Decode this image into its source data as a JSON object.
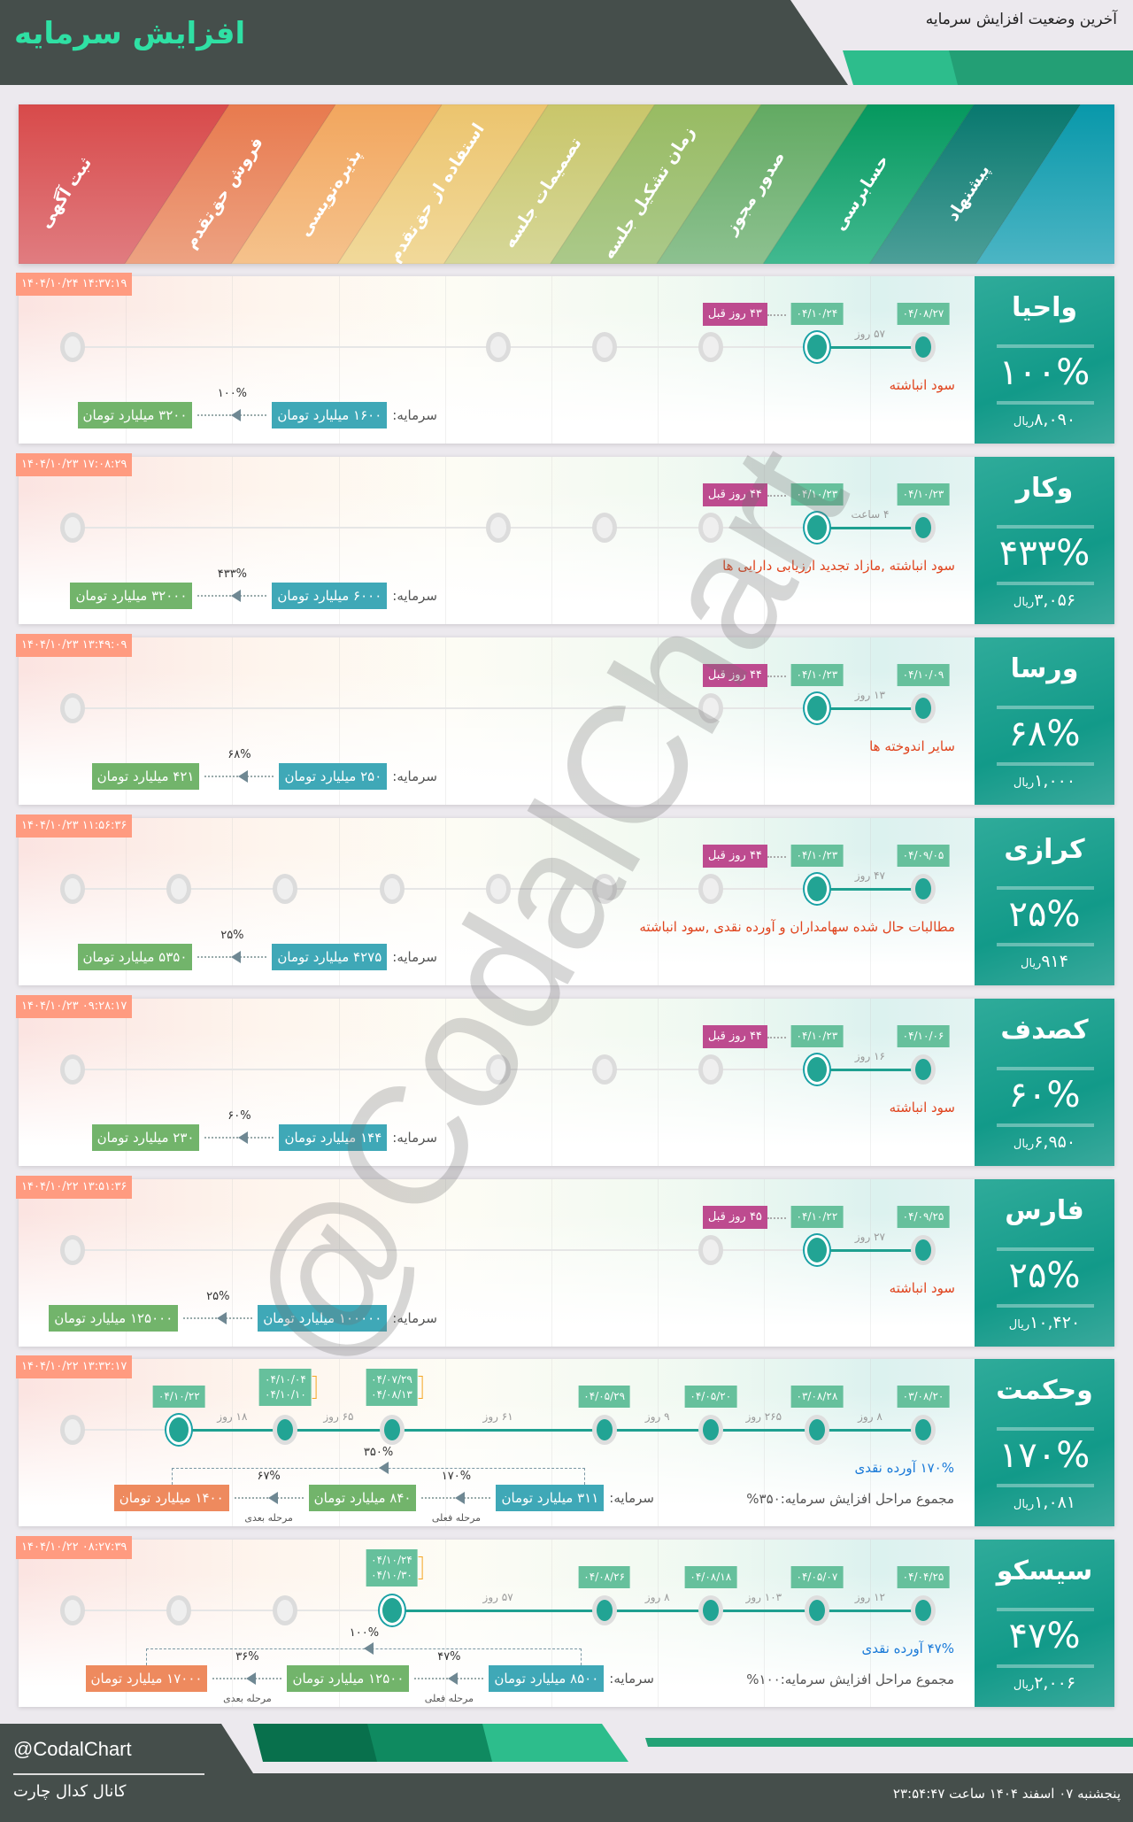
{
  "header": {
    "title": "افزایش سرمایه",
    "subtitle": "آخرین وضعیت افزایش سرمایه"
  },
  "stages": [
    "ثبت آگهی",
    "فروش حق‌تقدم",
    "پذیره‌نویسی",
    "استفاده از حق‌تقدم",
    "تصمیمات جلسه",
    "زمان تشکیل جلسه",
    "صدور مجوز",
    "حسابرسی",
    "پیشنهاد"
  ],
  "stage_colors": [
    "#d84a4a",
    "#e87a4e",
    "#f2a65e",
    "#ecc46e",
    "#c9c66a",
    "#98bb62",
    "#62aa62",
    "#05985e",
    "#08786e",
    "#0898aa"
  ],
  "labels": {
    "capital": "سرمایه:",
    "rial": "ریال",
    "current_step": "مرحله فعلی",
    "next_step": "مرحله بعدی"
  },
  "cards": [
    {
      "name": "واحیا",
      "percent": "۱۰۰%",
      "price": "۸,۰۹۰",
      "timestamp": "۱۴۰۴/۱۰/۲۴ ۱۴:۳۷:۱۹",
      "stages": [
        {
          "stage": 0,
          "state": "done",
          "dates": [
            "۰۴/۰۸/۲۷"
          ]
        },
        {
          "stage": 1,
          "state": "current",
          "dates": [
            "۰۴/۱۰/۲۴"
          ]
        },
        {
          "stage": 2,
          "state": "empty"
        },
        {
          "stage": 3,
          "state": "empty"
        },
        {
          "stage": 4,
          "state": "empty"
        },
        {
          "stage": 8,
          "state": "empty"
        }
      ],
      "gaps": [
        {
          "from": 0,
          "to": 1,
          "label": "۵۷ روز"
        }
      ],
      "ago": "۴۳ روز قبل",
      "reason": "سود انباشته",
      "capital": {
        "boxes": [
          "۱۶۰۰ میلیارد تومان",
          "۳۲۰۰ میلیارد تومان"
        ],
        "steps": [
          {
            "percent": "۱۰۰%"
          }
        ]
      }
    },
    {
      "name": "وکار",
      "percent": "۴۳۳%",
      "price": "۳,۰۵۶",
      "timestamp": "۱۴۰۴/۱۰/۲۳ ۱۷:۰۸:۲۹",
      "stages": [
        {
          "stage": 0,
          "state": "done",
          "dates": [
            "۰۴/۱۰/۲۳"
          ]
        },
        {
          "stage": 1,
          "state": "current",
          "dates": [
            "۰۴/۱۰/۲۳"
          ]
        },
        {
          "stage": 2,
          "state": "empty"
        },
        {
          "stage": 3,
          "state": "empty"
        },
        {
          "stage": 4,
          "state": "empty"
        },
        {
          "stage": 8,
          "state": "empty"
        }
      ],
      "gaps": [
        {
          "from": 0,
          "to": 1,
          "label": "۴ ساعت"
        }
      ],
      "ago": "۴۴ روز قبل",
      "reason": "سود انباشته ,مازاد تجدید ارزیابی دارایی ها",
      "capital": {
        "boxes": [
          "۶۰۰۰ میلیارد تومان",
          "۳۲۰۰۰ میلیارد تومان"
        ],
        "steps": [
          {
            "percent": "۴۳۳%"
          }
        ]
      }
    },
    {
      "name": "ورسا",
      "percent": "۶۸%",
      "price": "۱,۰۰۰",
      "timestamp": "۱۴۰۴/۱۰/۲۳ ۱۳:۴۹:۰۹",
      "stages": [
        {
          "stage": 0,
          "state": "done",
          "dates": [
            "۰۴/۱۰/۰۹"
          ]
        },
        {
          "stage": 1,
          "state": "current",
          "dates": [
            "۰۴/۱۰/۲۳"
          ]
        },
        {
          "stage": 2,
          "state": "empty"
        },
        {
          "stage": 8,
          "state": "empty"
        }
      ],
      "gaps": [
        {
          "from": 0,
          "to": 1,
          "label": "۱۳ روز"
        }
      ],
      "ago": "۴۴ روز قبل",
      "reason": "سایر اندوخته ها",
      "capital": {
        "boxes": [
          "۲۵۰ میلیارد تومان",
          "۴۲۱ میلیارد تومان"
        ],
        "steps": [
          {
            "percent": "۶۸%"
          }
        ]
      }
    },
    {
      "name": "کرازی",
      "percent": "۲۵%",
      "price": "۹۱۴",
      "timestamp": "۱۴۰۴/۱۰/۲۳ ۱۱:۵۶:۳۶",
      "stages": [
        {
          "stage": 0,
          "state": "done",
          "dates": [
            "۰۴/۰۹/۰۵"
          ]
        },
        {
          "stage": 1,
          "state": "current",
          "dates": [
            "۰۴/۱۰/۲۳"
          ]
        },
        {
          "stage": 2,
          "state": "empty"
        },
        {
          "stage": 3,
          "state": "empty"
        },
        {
          "stage": 4,
          "state": "empty"
        },
        {
          "stage": 5,
          "state": "empty"
        },
        {
          "stage": 6,
          "state": "empty"
        },
        {
          "stage": 7,
          "state": "empty"
        },
        {
          "stage": 8,
          "state": "empty"
        }
      ],
      "gaps": [
        {
          "from": 0,
          "to": 1,
          "label": "۴۷ روز"
        }
      ],
      "ago": "۴۴ روز قبل",
      "reason": "مطالبات حال شده سهامداران و آورده نقدی ,سود انباشته",
      "capital": {
        "boxes": [
          "۴۲۷۵ میلیارد تومان",
          "۵۳۵۰ میلیارد تومان"
        ],
        "steps": [
          {
            "percent": "۲۵%"
          }
        ]
      }
    },
    {
      "name": "کصدف",
      "percent": "۶۰%",
      "price": "۶,۹۵۰",
      "timestamp": "۱۴۰۴/۱۰/۲۳ ۰۹:۲۸:۱۷",
      "stages": [
        {
          "stage": 0,
          "state": "done",
          "dates": [
            "۰۴/۱۰/۰۶"
          ]
        },
        {
          "stage": 1,
          "state": "current",
          "dates": [
            "۰۴/۱۰/۲۳"
          ]
        },
        {
          "stage": 2,
          "state": "empty"
        },
        {
          "stage": 3,
          "state": "empty"
        },
        {
          "stage": 4,
          "state": "empty"
        },
        {
          "stage": 8,
          "state": "empty"
        }
      ],
      "gaps": [
        {
          "from": 0,
          "to": 1,
          "label": "۱۶ روز"
        }
      ],
      "ago": "۴۴ روز قبل",
      "reason": "سود انباشته",
      "capital": {
        "boxes": [
          "۱۴۴ میلیارد تومان",
          "۲۳۰ میلیارد تومان"
        ],
        "steps": [
          {
            "percent": "۶۰%"
          }
        ]
      }
    },
    {
      "name": "فارس",
      "percent": "۲۵%",
      "price": "۱۰,۴۲۰",
      "timestamp": "۱۴۰۴/۱۰/۲۲ ۱۳:۵۱:۳۶",
      "stages": [
        {
          "stage": 0,
          "state": "done",
          "dates": [
            "۰۴/۰۹/۲۵"
          ]
        },
        {
          "stage": 1,
          "state": "current",
          "dates": [
            "۰۴/۱۰/۲۲"
          ]
        },
        {
          "stage": 2,
          "state": "empty"
        },
        {
          "stage": 8,
          "state": "empty"
        }
      ],
      "gaps": [
        {
          "from": 0,
          "to": 1,
          "label": "۲۷ روز"
        }
      ],
      "ago": "۴۵ روز قبل",
      "reason": "سود انباشته",
      "capital": {
        "boxes": [
          "۱۰۰۰۰۰ میلیارد تومان",
          "۱۲۵۰۰۰ میلیارد تومان"
        ],
        "steps": [
          {
            "percent": "۲۵%"
          }
        ]
      }
    },
    {
      "name": "وحکمت",
      "percent": "۱۷۰%",
      "price": "۱,۰۸۱",
      "timestamp": "۱۴۰۴/۱۰/۲۲ ۱۳:۳۲:۱۷",
      "stages": [
        {
          "stage": 0,
          "state": "done",
          "dates": [
            "۰۳/۰۸/۲۰"
          ]
        },
        {
          "stage": 1,
          "state": "done",
          "dates": [
            "۰۳/۰۸/۲۸"
          ]
        },
        {
          "stage": 2,
          "state": "done",
          "dates": [
            "۰۴/۰۵/۲۰"
          ]
        },
        {
          "stage": 3,
          "state": "done",
          "dates": [
            "۰۴/۰۵/۲۹"
          ]
        },
        {
          "stage": 5,
          "state": "done",
          "dates": [
            "۰۴/۰۷/۲۹",
            "۰۴/۰۸/۱۳"
          ]
        },
        {
          "stage": 6,
          "state": "done",
          "dates": [
            "۰۴/۱۰/۰۴",
            "۰۴/۱۰/۱۰"
          ]
        },
        {
          "stage": 7,
          "state": "current",
          "dates": [
            "۰۴/۱۰/۲۲"
          ]
        },
        {
          "stage": 8,
          "state": "empty"
        }
      ],
      "gaps": [
        {
          "from": 0,
          "to": 1,
          "label": "۸ روز"
        },
        {
          "from": 1,
          "to": 2,
          "label": "۲۶۵ روز"
        },
        {
          "from": 2,
          "to": 3,
          "label": "۹ روز"
        },
        {
          "from": 3,
          "to": 5,
          "label": "۶۱ روز"
        },
        {
          "from": 5,
          "to": 6,
          "label": "۶۵ روز"
        },
        {
          "from": 6,
          "to": 7,
          "label": "۱۸ روز"
        }
      ],
      "cash": "۱۷۰% آورده نقدی",
      "total": "مجموع مراحل افزایش سرمایه:۳۵۰%",
      "capital": {
        "boxes": [
          "۳۱۱ میلیارد تومان",
          "۸۴۰ میلیارد تومان",
          "۱۴۰۰ میلیارد تومان"
        ],
        "steps": [
          {
            "percent": "۱۷۰%",
            "label": "مرحله فعلی"
          },
          {
            "percent": "۶۷%",
            "label": "مرحله بعدی"
          }
        ],
        "total_percent": "۳۵۰%"
      }
    },
    {
      "name": "سیسکو",
      "percent": "۴۷%",
      "price": "۲,۰۰۶",
      "timestamp": "۱۴۰۴/۱۰/۲۲ ۰۸:۲۷:۳۹",
      "stages": [
        {
          "stage": 0,
          "state": "done",
          "dates": [
            "۰۴/۰۴/۲۵"
          ]
        },
        {
          "stage": 1,
          "state": "done",
          "dates": [
            "۰۴/۰۵/۰۷"
          ]
        },
        {
          "stage": 2,
          "state": "done",
          "dates": [
            "۰۴/۰۸/۱۸"
          ]
        },
        {
          "stage": 3,
          "state": "done",
          "dates": [
            "۰۴/۰۸/۲۶"
          ]
        },
        {
          "stage": 5,
          "state": "current",
          "dates": [
            "۰۴/۱۰/۲۴",
            "۰۴/۱۰/۳۰"
          ]
        },
        {
          "stage": 6,
          "state": "empty"
        },
        {
          "stage": 7,
          "state": "empty"
        },
        {
          "stage": 8,
          "state": "empty"
        }
      ],
      "gaps": [
        {
          "from": 0,
          "to": 1,
          "label": "۱۲ روز"
        },
        {
          "from": 1,
          "to": 2,
          "label": "۱۰۳ روز"
        },
        {
          "from": 2,
          "to": 3,
          "label": "۸ روز"
        },
        {
          "from": 3,
          "to": 5,
          "label": "۵۷ روز"
        }
      ],
      "cash": "۴۷% آورده نقدی",
      "total": "مجموع مراحل افزایش سرمایه:۱۰۰%",
      "capital": {
        "boxes": [
          "۸۵۰۰ میلیارد تومان",
          "۱۲۵۰۰ میلیارد تومان",
          "۱۷۰۰۰ میلیارد تومان"
        ],
        "steps": [
          {
            "percent": "۴۷%",
            "label": "مرحله فعلی"
          },
          {
            "percent": "۳۶%",
            "label": "مرحله بعدی"
          }
        ],
        "total_percent": "۱۰۰%"
      }
    }
  ],
  "watermark": "@CodalChart",
  "footer": {
    "handle": "@CodalChart",
    "channel": "کانال کدال چارت",
    "datetime": "پنجشنبه ۰۷ اسفند ۱۴۰۴ ساعت ۲۳:۵۴:۴۷"
  }
}
